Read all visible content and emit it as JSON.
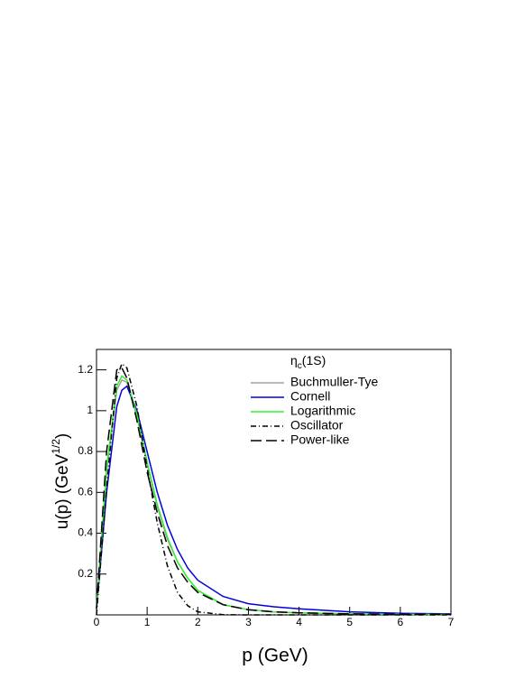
{
  "chart_data": {
    "type": "line",
    "legend_header": [
      "η",
      "c",
      "(1S)"
    ],
    "xlabel": "p (GeV)",
    "ylabel": [
      "u(p) (GeV",
      "1/2",
      ")"
    ],
    "x": [
      0,
      0.2,
      0.4,
      0.5,
      0.6,
      0.8,
      1,
      1.2,
      1.4,
      1.6,
      1.8,
      2,
      2.5,
      3,
      3.5,
      4,
      5,
      6,
      7
    ],
    "series": [
      {
        "name": "Buchmuller-Tye",
        "color": "#a0a0a0",
        "dash": "solid",
        "values": [
          0.03,
          0.7,
          1.1,
          1.15,
          1.14,
          0.97,
          0.74,
          0.53,
          0.37,
          0.26,
          0.18,
          0.12,
          0.05,
          0.025,
          0.015,
          0.01,
          0.005,
          0.003,
          0.002
        ]
      },
      {
        "name": "Cornell",
        "color": "#0000dd",
        "dash": "solid",
        "values": [
          0.03,
          0.6,
          1.02,
          1.1,
          1.12,
          1.0,
          0.8,
          0.6,
          0.44,
          0.32,
          0.23,
          0.17,
          0.09,
          0.055,
          0.04,
          0.03,
          0.015,
          0.008,
          0.005
        ]
      },
      {
        "name": "Logarithmic",
        "color": "#33ee33",
        "dash": "solid",
        "values": [
          0.03,
          0.72,
          1.12,
          1.17,
          1.15,
          0.98,
          0.75,
          0.54,
          0.38,
          0.26,
          0.18,
          0.12,
          0.05,
          0.025,
          0.015,
          0.01,
          0.005,
          0.003,
          0.002
        ]
      },
      {
        "name": "Oscillator",
        "color": "#000000",
        "dash": "dashdot",
        "values": [
          0.0,
          0.62,
          1.16,
          1.23,
          1.21,
          1.02,
          0.72,
          0.45,
          0.24,
          0.11,
          0.045,
          0.015,
          0.001,
          0,
          0,
          0,
          0,
          0,
          0
        ]
      },
      {
        "name": "Power-like",
        "color": "#000000",
        "dash": "longdash",
        "values": [
          0.03,
          0.8,
          1.2,
          1.21,
          1.16,
          0.95,
          0.7,
          0.5,
          0.34,
          0.23,
          0.16,
          0.11,
          0.05,
          0.025,
          0.015,
          0.01,
          0.005,
          0.003,
          0.002
        ]
      }
    ],
    "xlim": [
      0,
      7
    ],
    "xticks": [
      0,
      1,
      2,
      3,
      4,
      5,
      6,
      7
    ],
    "ylim": [
      0,
      1.3
    ],
    "yticks": [
      0.2,
      0.4,
      0.6,
      0.8,
      1,
      1.2
    ]
  }
}
